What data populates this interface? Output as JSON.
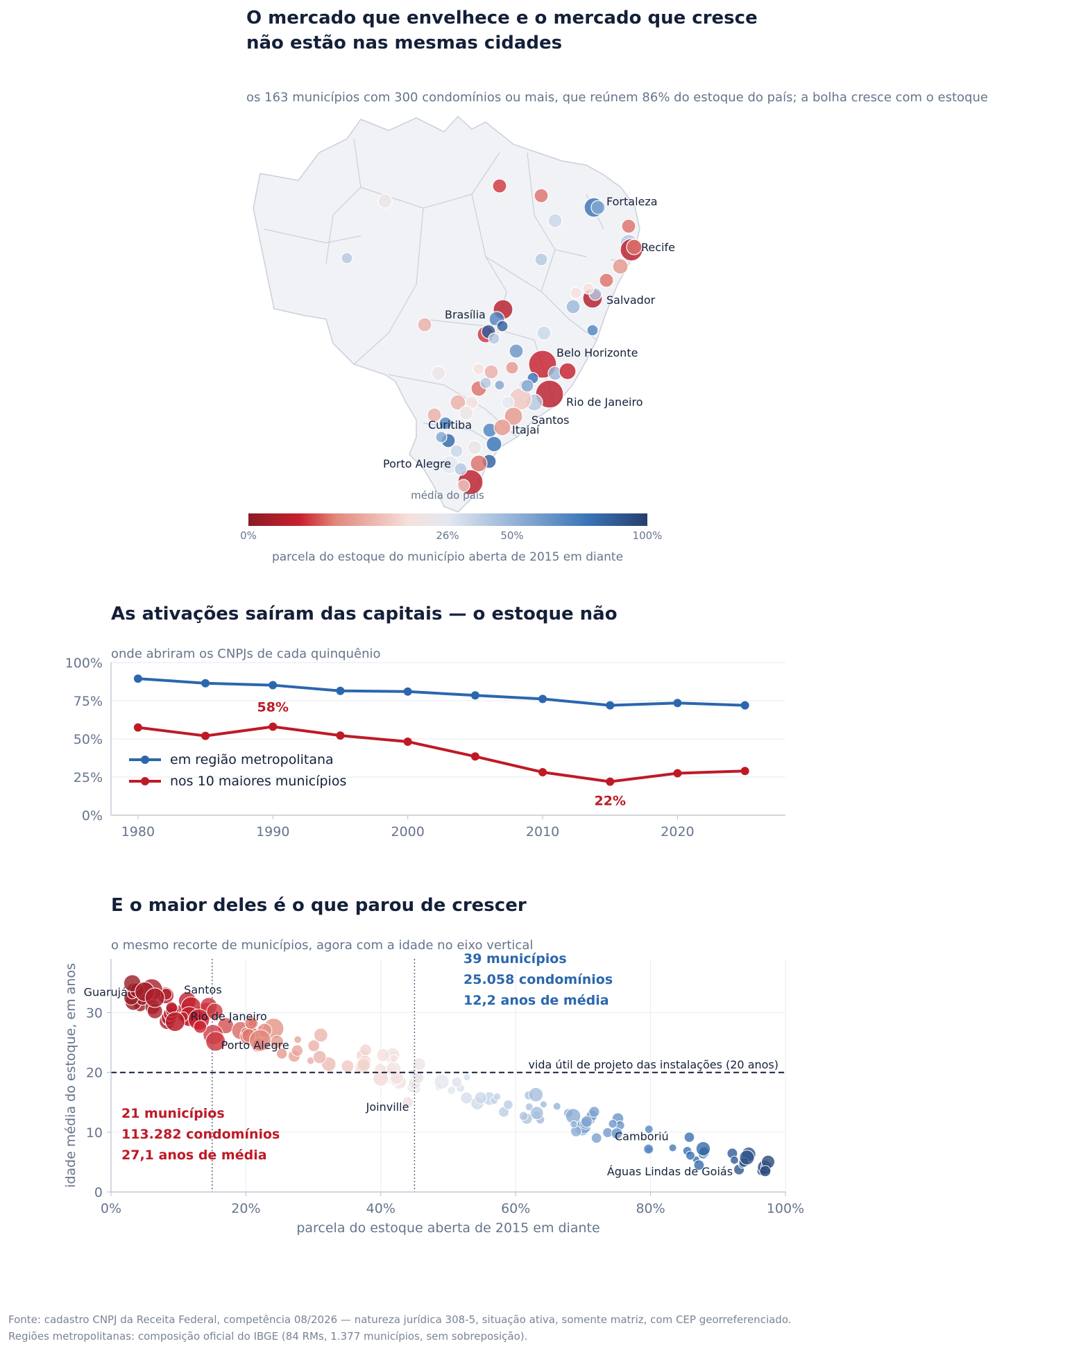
{
  "header": {
    "title_line1": "O mercado que envelhece e o mercado que cresce",
    "title_line2": "não estão nas mesmas cidades",
    "subtitle": "os 163 municípios com 300 condomínios ou mais, que reúnem 86% do estoque do país; a bolha cresce com o estoque"
  },
  "map": {
    "city_labels": [
      "Fortaleza",
      "Recife",
      "Salvador",
      "Brasília",
      "Belo Horizonte",
      "Rio de Janeiro",
      "Santos",
      "Curitiba",
      "Itajaí",
      "Porto Alegre"
    ],
    "colorbar": {
      "ticks": [
        "0%",
        "26%",
        "50%",
        "100%"
      ],
      "tick_values": [
        0,
        26,
        50,
        100
      ],
      "marker_label": "média do país",
      "marker_value": 26,
      "label": "parcela do estoque do município aberta de 2015 em diante",
      "colors": [
        "#8a1b24",
        "#c9202e",
        "#e2897c",
        "#f5e0dc",
        "#e3e8f0",
        "#9cb8da",
        "#3a74b7",
        "#263f6d"
      ]
    },
    "colors": {
      "land": "#f0f2f6",
      "border": "#c9cfdb"
    }
  },
  "section2": {
    "title": "As ativações saíram das capitais — o estoque não",
    "subtitle": "onde abriram os CNPJs de cada quinquênio"
  },
  "section3": {
    "title": "E o maior deles é o que parou de crescer",
    "subtitle": "o mesmo recorte de municípios, agora com a idade no eixo vertical",
    "blue_box": [
      "39 municípios",
      "25.058 condomínios",
      "12,2 anos de média"
    ],
    "red_box": [
      "21 municípios",
      "113.282 condomínios",
      "27,1 anos de média"
    ],
    "reference_label": "vida útil de projeto das instalações (20 anos)"
  },
  "footer": {
    "line1": "Fonte: cadastro CNPJ da Receita Federal, competência 08/2026 — natureza jurídica 308-5, situação ativa, somente matriz, com CEP georreferenciado.",
    "line2": "Regiões metropolitanas: composição oficial do IBGE (84 RMs, 1.377 municípios, sem sobreposição)."
  },
  "chart_data": [
    {
      "type": "scatter",
      "id": "map-bubbles",
      "note_labels": [
        "Fortaleza",
        "Recife",
        "Salvador",
        "Brasília",
        "Belo Horizonte",
        "Rio de Janeiro",
        "Santos",
        "Curitiba",
        "Itajaí",
        "Porto Alegre"
      ]
    },
    {
      "type": "line",
      "id": "activations",
      "x": [
        1980,
        1985,
        1990,
        1995,
        2000,
        2005,
        2010,
        2015,
        2020,
        2025
      ],
      "series": [
        {
          "name": "em região metropolitana",
          "color": "#2b67ad",
          "values": [
            89.5,
            86.5,
            85.2,
            81.5,
            81,
            78.5,
            76.2,
            72,
            73.5,
            72
          ]
        },
        {
          "name": "nos 10 maiores municípios",
          "color": "#be1a26",
          "values": [
            57.5,
            52,
            58,
            52.2,
            48.2,
            38.5,
            28.2,
            22,
            27.5,
            29
          ]
        }
      ],
      "annotations": [
        {
          "text": "58%",
          "x": 1990,
          "y": 58
        },
        {
          "text": "22%",
          "x": 2015,
          "y": 22
        }
      ],
      "xticks": [
        "1980",
        "1990",
        "2000",
        "2010",
        "2020"
      ],
      "yticks": [
        "0%",
        "25%",
        "50%",
        "75%",
        "100%"
      ],
      "xlim": [
        1978,
        2028
      ],
      "ylim": [
        0,
        100
      ],
      "legend": "center-left",
      "grid": true
    },
    {
      "type": "scatter",
      "id": "age-vs-share",
      "xlabel": "parcela do estoque aberta de 2015 em diante",
      "ylabel": "idade média do estoque, em anos",
      "xticks": [
        "0%",
        "20%",
        "40%",
        "60%",
        "80%",
        "100%"
      ],
      "yticks": [
        "0",
        "10",
        "20",
        "30"
      ],
      "xlim": [
        0,
        100
      ],
      "ylim": [
        0,
        39
      ],
      "reference_y": 20,
      "vlines": [
        15,
        45
      ],
      "grid": true,
      "labeled_points": [
        {
          "label": "Guarujá",
          "x": 5,
          "y": 33.5
        },
        {
          "label": "Santos",
          "x": 6.5,
          "y": 32.5
        },
        {
          "label": "Rio de Janeiro",
          "x": 9.5,
          "y": 28.5
        },
        {
          "label": "Porto Alegre",
          "x": 15.5,
          "y": 25.2
        },
        {
          "label": "Joinville",
          "x": 44,
          "y": 15
        },
        {
          "label": "Camboriú",
          "x": 75,
          "y": 9.8
        },
        {
          "label": "Águas Lindas de Goiás",
          "x": 97,
          "y": 3.5
        }
      ]
    }
  ]
}
